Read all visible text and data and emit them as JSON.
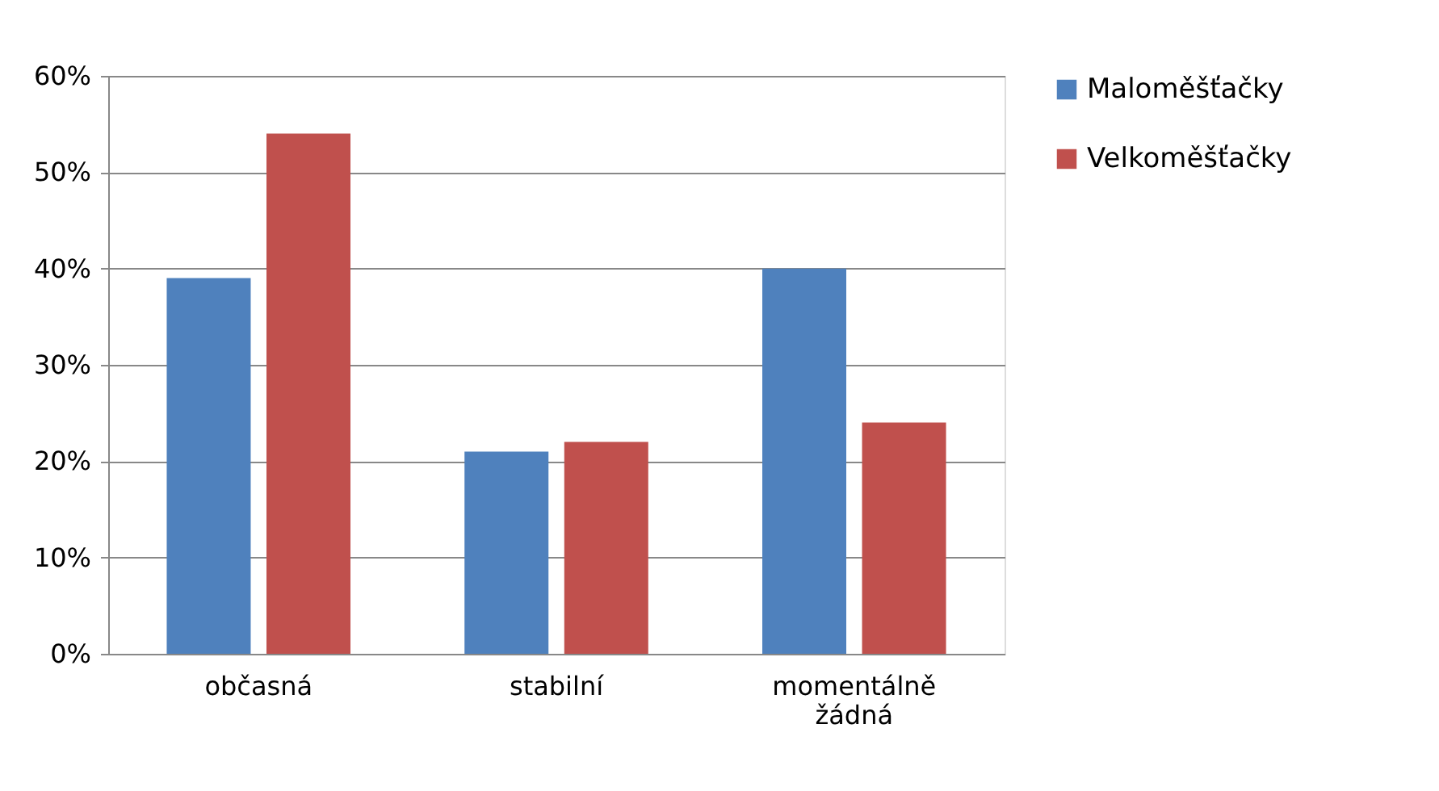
{
  "chart_data": {
    "type": "bar",
    "categories": [
      "občasná",
      "stabilní",
      "momentálně žádná"
    ],
    "series": [
      {
        "name": "Maloměšťačky",
        "color": "#4f81bd",
        "values": [
          39,
          21,
          40
        ]
      },
      {
        "name": "Velkoměšťačky",
        "color": "#c0504d",
        "values": [
          54,
          22,
          24
        ]
      }
    ],
    "ylim": [
      0,
      60
    ],
    "yticks": [
      {
        "value": 0,
        "label": "0%"
      },
      {
        "value": 10,
        "label": "10%"
      },
      {
        "value": 20,
        "label": "20%"
      },
      {
        "value": 30,
        "label": "30%"
      },
      {
        "value": 40,
        "label": "40%"
      },
      {
        "value": 50,
        "label": "50%"
      },
      {
        "value": 60,
        "label": "60%"
      }
    ],
    "grid": "y",
    "legend": "right"
  }
}
